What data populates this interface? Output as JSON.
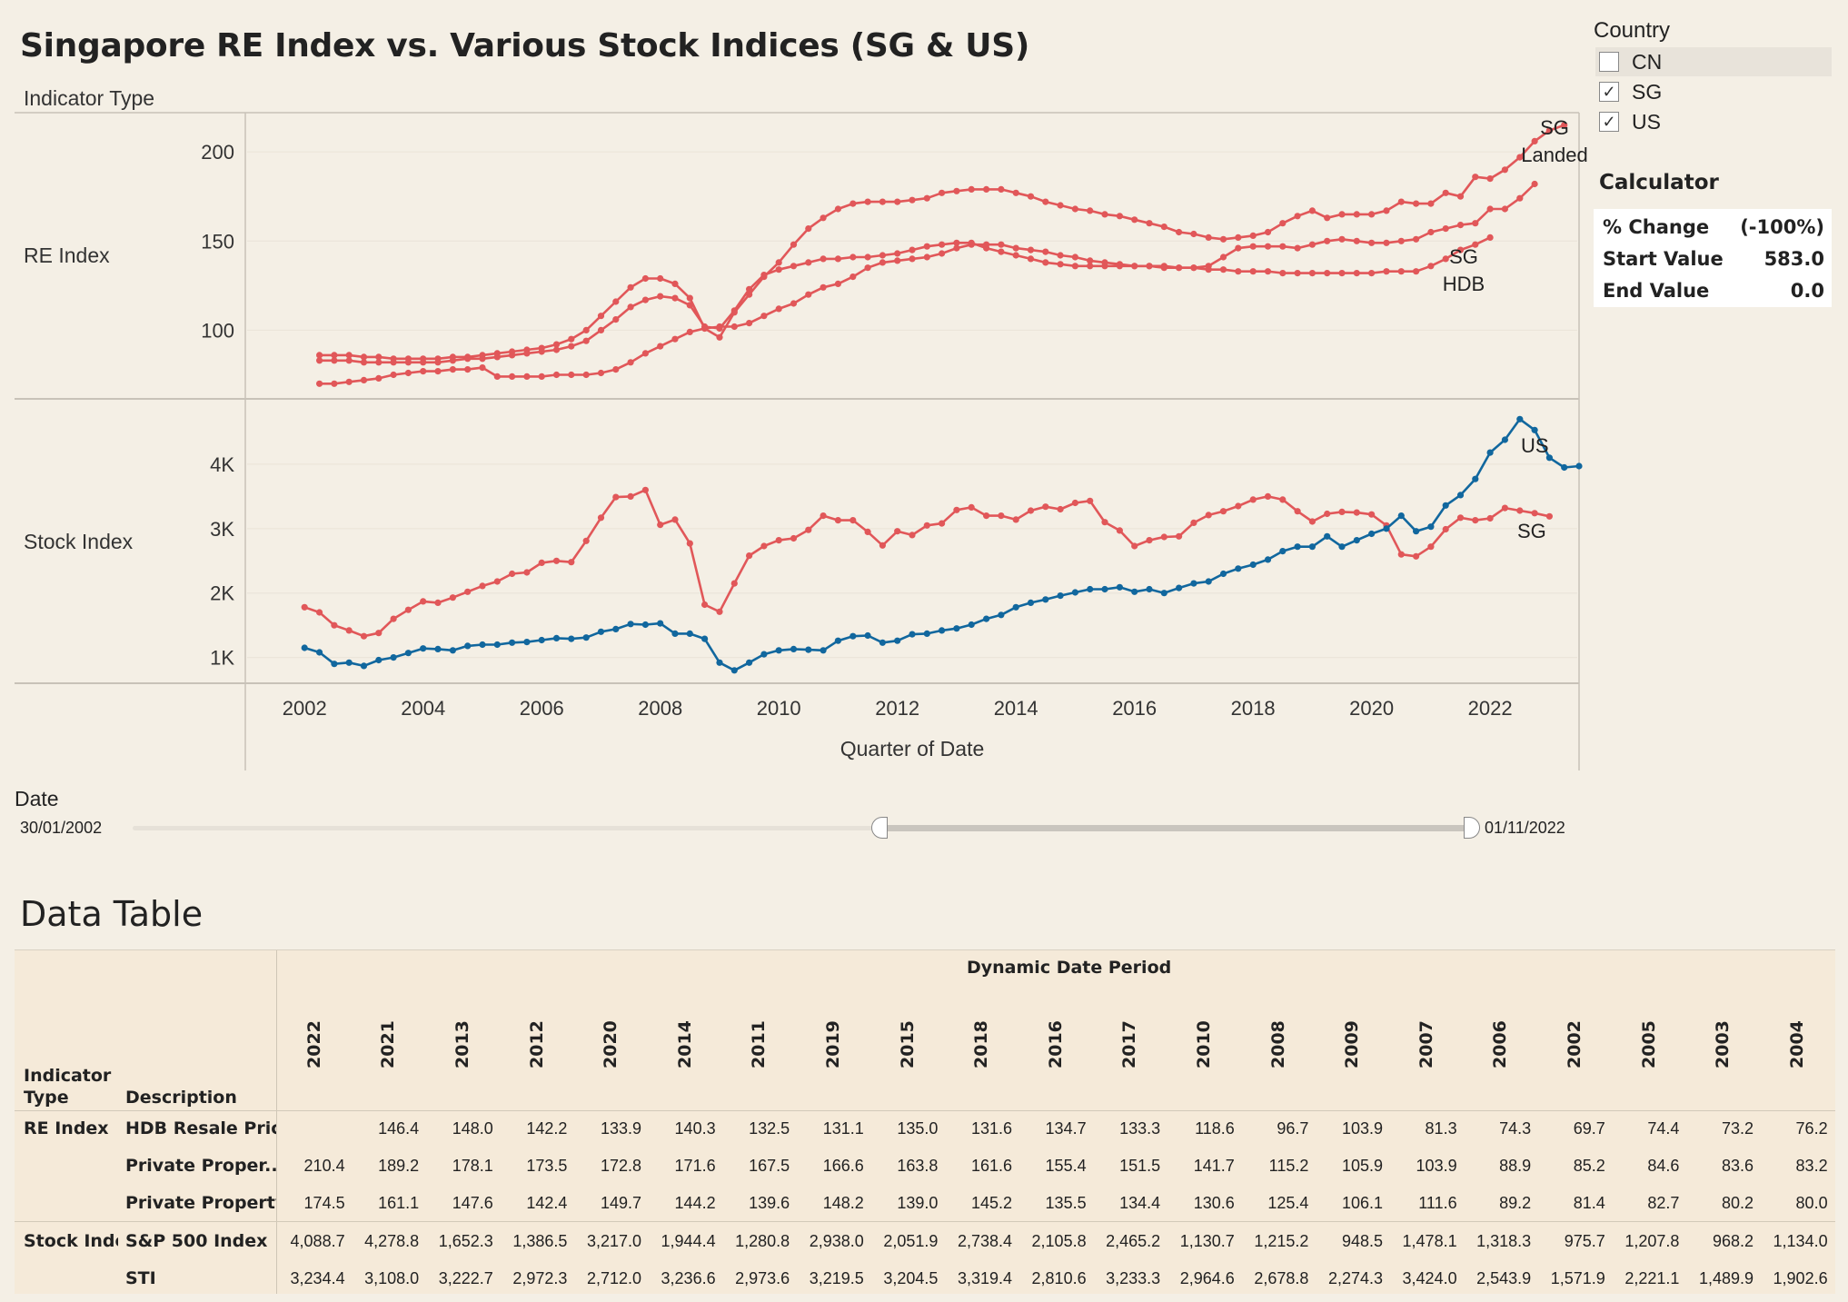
{
  "title": "Singapore RE Index vs. Various Stock Indices (SG & US)",
  "country_filter": {
    "title": "Country",
    "options": [
      {
        "label": "CN",
        "checked": false
      },
      {
        "label": "SG",
        "checked": true
      },
      {
        "label": "US",
        "checked": true
      }
    ]
  },
  "calculator": {
    "title": "Calculator",
    "rows": [
      {
        "label": "% Change",
        "value": "(-100%)"
      },
      {
        "label": "Start Value",
        "value": "583.0"
      },
      {
        "label": "End Value",
        "value": "0.0"
      }
    ]
  },
  "date_filter": {
    "label": "Date",
    "start": "30/01/2002",
    "end": "01/11/2022",
    "selected_range_fraction": [
      0.5,
      1.0
    ]
  },
  "colors": {
    "sg": "#e15759",
    "us": "#11679e",
    "background": "#f4efe5"
  },
  "chart_data": {
    "type": "line",
    "title": "Singapore RE Index vs. Various Stock Indices (SG & US)",
    "row_axis_title": "Indicator Type",
    "xlabel": "Quarter of Date",
    "x_ticks": [
      "2002",
      "2004",
      "2006",
      "2008",
      "2010",
      "2012",
      "2014",
      "2016",
      "2018",
      "2020",
      "2022"
    ],
    "xlim": [
      2001.0,
      2023.5
    ],
    "grid": true,
    "panels": [
      {
        "row_label": "RE Index",
        "ylim": [
          62,
          222
        ],
        "y_ticks": [
          "200",
          "150",
          "100"
        ],
        "y_tick_values": [
          200,
          150,
          100
        ],
        "series": [
          {
            "label": "SG Landed",
            "color": "#e15759",
            "start": 2002.25,
            "values": [
              86,
              86,
              86,
              85,
              85,
              84,
              84,
              84,
              84,
              85,
              85,
              86,
              87,
              88,
              89,
              90,
              92,
              95,
              100,
              108,
              116,
              124,
              129,
              129,
              126,
              118,
              101,
              96,
              110,
              120,
              130,
              138,
              148,
              157,
              163,
              168,
              171,
              172,
              172,
              172,
              173,
              174,
              177,
              178,
              179,
              179,
              179,
              177,
              175,
              172,
              170,
              168,
              167,
              165,
              164,
              162,
              160,
              158,
              155,
              154,
              152,
              151,
              152,
              153,
              155,
              160,
              164,
              167,
              163,
              165,
              165,
              165,
              167,
              172,
              171,
              171,
              177,
              175,
              186,
              185,
              190,
              197,
              206,
              212,
              215
            ]
          },
          {
            "label": "",
            "color": "#e15759",
            "start": 2002.25,
            "values": [
              83,
              83,
              83,
              82,
              82,
              82,
              82,
              82,
              82,
              83,
              84,
              84,
              85,
              86,
              87,
              88,
              89,
              91,
              94,
              100,
              106,
              113,
              117,
              119,
              118,
              114,
              102,
              101,
              111,
              123,
              131,
              134,
              136,
              138,
              140,
              140,
              141,
              141,
              142,
              143,
              145,
              147,
              148,
              149,
              149,
              146,
              144,
              142,
              140,
              138,
              137,
              136,
              136,
              136,
              136,
              136,
              136,
              135,
              135,
              135,
              136,
              141,
              146,
              147,
              147,
              147,
              146,
              148,
              150,
              151,
              150,
              149,
              149,
              150,
              151,
              155,
              157,
              159,
              160,
              168,
              168,
              174,
              182
            ]
          },
          {
            "label": "SG HDB",
            "color": "#e15759",
            "start": 2002.25,
            "values": [
              70,
              70,
              71,
              72,
              73,
              75,
              76,
              77,
              77,
              78,
              78,
              79,
              74,
              74,
              74,
              74,
              75,
              75,
              75,
              76,
              78,
              82,
              87,
              91,
              95,
              99,
              101,
              102,
              102,
              104,
              108,
              112,
              115,
              120,
              124,
              126,
              130,
              135,
              138,
              139,
              140,
              141,
              143,
              146,
              148,
              148,
              148,
              146,
              145,
              144,
              142,
              141,
              139,
              138,
              137,
              136,
              136,
              136,
              135,
              135,
              134,
              134,
              133,
              133,
              133,
              132,
              132,
              132,
              132,
              132,
              132,
              132,
              133,
              133,
              133,
              136,
              140,
              145,
              148,
              152
            ]
          }
        ]
      },
      {
        "row_label": "Stock Index",
        "ylim": [
          600,
          5000
        ],
        "y_ticks": [
          "4K",
          "3K",
          "2K",
          "1K"
        ],
        "y_tick_values": [
          4000,
          3000,
          2000,
          1000
        ],
        "series": [
          {
            "label": "SG",
            "color": "#e15759",
            "start": 2002.0,
            "values": [
              1780,
              1700,
              1500,
              1420,
              1330,
              1380,
              1600,
              1740,
              1870,
              1850,
              1930,
              2020,
              2110,
              2180,
              2300,
              2320,
              2470,
              2500,
              2480,
              2810,
              3170,
              3490,
              3500,
              3600,
              3060,
              3140,
              2770,
              1820,
              1710,
              2150,
              2580,
              2730,
              2820,
              2850,
              2980,
              3200,
              3130,
              3130,
              2950,
              2740,
              2960,
              2900,
              3050,
              3080,
              3290,
              3330,
              3200,
              3200,
              3140,
              3280,
              3340,
              3300,
              3400,
              3430,
              3100,
              2970,
              2730,
              2820,
              2870,
              2880,
              3090,
              3210,
              3270,
              3350,
              3450,
              3500,
              3450,
              3270,
              3110,
              3230,
              3260,
              3250,
              3220,
              3050,
              2600,
              2570,
              2720,
              2990,
              3170,
              3130,
              3160,
              3320,
              3280,
              3240,
              3190
            ]
          },
          {
            "label": "US",
            "color": "#11679e",
            "start": 2002.0,
            "values": [
              1150,
              1080,
              900,
              920,
              870,
              960,
              1000,
              1070,
              1140,
              1130,
              1110,
              1180,
              1200,
              1200,
              1230,
              1240,
              1270,
              1300,
              1290,
              1310,
              1400,
              1440,
              1520,
              1510,
              1530,
              1370,
              1370,
              1290,
              920,
              800,
              920,
              1050,
              1110,
              1130,
              1120,
              1110,
              1260,
              1330,
              1340,
              1230,
              1260,
              1360,
              1370,
              1420,
              1450,
              1510,
              1600,
              1660,
              1780,
              1850,
              1900,
              1960,
              2010,
              2060,
              2060,
              2090,
              2020,
              2060,
              2000,
              2080,
              2150,
              2180,
              2300,
              2380,
              2440,
              2520,
              2650,
              2720,
              2720,
              2880,
              2720,
              2820,
              2920,
              3000,
              3200,
              2960,
              3030,
              3360,
              3520,
              3770,
              4180,
              4380,
              4700,
              4530,
              4100,
              3950,
              3970
            ]
          }
        ]
      }
    ]
  },
  "data_table": {
    "title": "Data Table",
    "column_group_title": "Dynamic Date Period",
    "header_indicator": [
      "Indicator",
      "Type"
    ],
    "header_description": "Description",
    "years": [
      "2022",
      "2021",
      "2013",
      "2012",
      "2020",
      "2014",
      "2011",
      "2019",
      "2015",
      "2018",
      "2016",
      "2017",
      "2010",
      "2008",
      "2009",
      "2007",
      "2006",
      "2002",
      "2005",
      "2003",
      "2004"
    ],
    "groups": [
      {
        "label": "RE Index",
        "rows": [
          {
            "desc": "HDB Resale Price..",
            "values": [
              "",
              "146.4",
              "148.0",
              "142.2",
              "133.9",
              "140.3",
              "132.5",
              "131.1",
              "135.0",
              "131.6",
              "134.7",
              "133.3",
              "118.6",
              "96.7",
              "103.9",
              "81.3",
              "74.3",
              "69.7",
              "74.4",
              "73.2",
              "76.2"
            ]
          },
          {
            "desc": "Private Proper..",
            "values": [
              "210.4",
              "189.2",
              "178.1",
              "173.5",
              "172.8",
              "171.6",
              "167.5",
              "166.6",
              "163.8",
              "161.6",
              "155.4",
              "151.5",
              "141.7",
              "115.2",
              "105.9",
              "103.9",
              "88.9",
              "85.2",
              "84.6",
              "83.6",
              "83.2"
            ]
          },
          {
            "desc": "Private Property ..",
            "values": [
              "174.5",
              "161.1",
              "147.6",
              "142.4",
              "149.7",
              "144.2",
              "139.6",
              "148.2",
              "139.0",
              "145.2",
              "135.5",
              "134.4",
              "130.6",
              "125.4",
              "106.1",
              "111.6",
              "89.2",
              "81.4",
              "82.7",
              "80.2",
              "80.0"
            ]
          }
        ]
      },
      {
        "label": "Stock Index",
        "rows": [
          {
            "desc": "S&P 500 Index",
            "values": [
              "4,088.7",
              "4,278.8",
              "1,652.3",
              "1,386.5",
              "3,217.0",
              "1,944.4",
              "1,280.8",
              "2,938.0",
              "2,051.9",
              "2,738.4",
              "2,105.8",
              "2,465.2",
              "1,130.7",
              "1,215.2",
              "948.5",
              "1,478.1",
              "1,318.3",
              "975.7",
              "1,207.8",
              "968.2",
              "1,134.0"
            ]
          },
          {
            "desc": "STI",
            "values": [
              "3,234.4",
              "3,108.0",
              "3,222.7",
              "2,972.3",
              "2,712.0",
              "3,236.6",
              "2,973.6",
              "3,219.5",
              "3,204.5",
              "3,319.4",
              "2,810.6",
              "3,233.3",
              "2,964.6",
              "2,678.8",
              "2,274.3",
              "3,424.0",
              "2,543.9",
              "1,571.9",
              "2,221.1",
              "1,489.9",
              "1,902.6"
            ]
          }
        ]
      }
    ]
  }
}
